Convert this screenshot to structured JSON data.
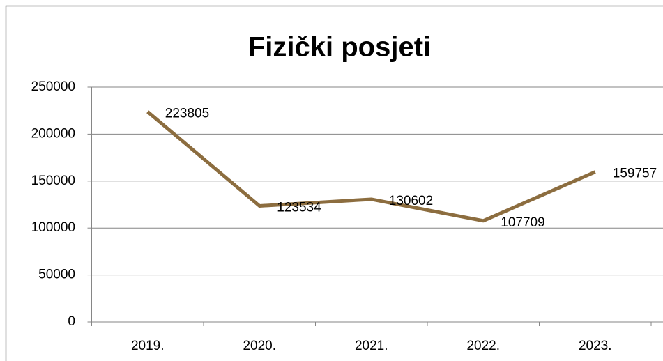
{
  "chart_data": {
    "type": "line",
    "title": "Fizički posjeti",
    "categories": [
      "2019.",
      "2020.",
      "2021.",
      "2022.",
      "2023."
    ],
    "values": [
      223805,
      123534,
      130602,
      107709,
      159757
    ],
    "color": "#8c6d3f",
    "ylim": [
      0,
      250000
    ],
    "yticks": [
      0,
      50000,
      100000,
      150000,
      200000,
      250000
    ],
    "grid": true
  }
}
